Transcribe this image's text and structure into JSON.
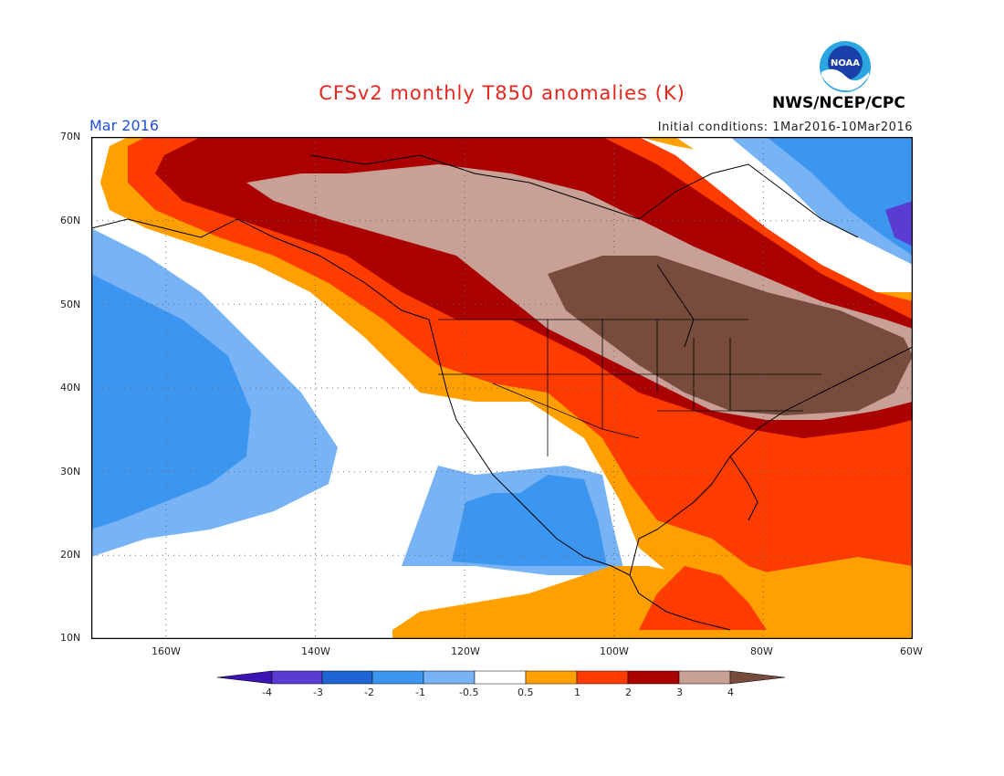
{
  "header": {
    "title": "CFSv2 monthly T850 anomalies (K)",
    "month": "Mar 2016",
    "initial_conditions": "Initial conditions: 1Mar2016-10Mar2016",
    "agency": "NWS/NCEP/CPC",
    "logo_text": "NOAA"
  },
  "axes": {
    "lat_labels": [
      "70N",
      "60N",
      "50N",
      "40N",
      "30N",
      "20N",
      "10N"
    ],
    "lon_labels": [
      "160W",
      "140W",
      "120W",
      "100W",
      "80W",
      "60W"
    ]
  },
  "colorbar": {
    "labels": [
      "-4",
      "-3",
      "-2",
      "-1",
      "-0.5",
      "0.5",
      "1",
      "2",
      "3",
      "4"
    ],
    "colors": [
      "#3c14b4",
      "#5a3cd2",
      "#1e64d2",
      "#3c96f0",
      "#78b4f5",
      "#ffffff",
      "#ffa000",
      "#ff3c00",
      "#aa0000",
      "#c8a096",
      "#784c3c"
    ]
  },
  "map": {
    "region": "North America",
    "lat_range": [
      10,
      70
    ],
    "lon_range": [
      -170,
      -60
    ]
  }
}
